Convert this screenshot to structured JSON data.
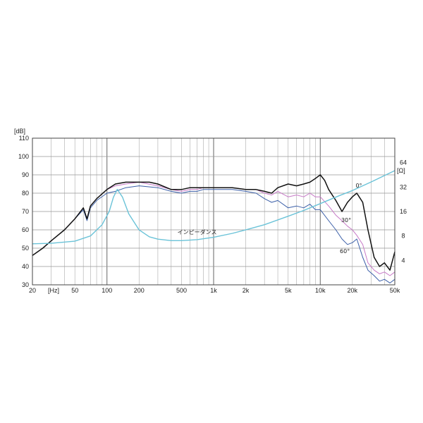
{
  "chart_data": {
    "type": "line",
    "title": "",
    "x_scale": "log",
    "xlim": [
      20,
      50000
    ],
    "ylim": [
      30,
      110
    ],
    "y2lim": [
      2,
      128
    ],
    "y2_scale": "log",
    "grid": true,
    "y_unit_label": "[dB]",
    "x_unit_label": "[Hz]",
    "y2_unit_label": "[Ω]",
    "x_ticks": [
      {
        "value": 20,
        "label": "20"
      },
      {
        "value": 50,
        "label": "50"
      },
      {
        "value": 100,
        "label": "100"
      },
      {
        "value": 200,
        "label": "200"
      },
      {
        "value": 500,
        "label": "500"
      },
      {
        "value": 1000,
        "label": "1k"
      },
      {
        "value": 2000,
        "label": "2k"
      },
      {
        "value": 5000,
        "label": "5k"
      },
      {
        "value": 10000,
        "label": "10k"
      },
      {
        "value": 20000,
        "label": "20k"
      },
      {
        "value": 50000,
        "label": "50k"
      }
    ],
    "y_ticks": [
      110,
      100,
      90,
      80,
      70,
      60,
      50,
      40,
      30
    ],
    "y2_ticks": [
      64,
      32,
      16,
      8,
      4
    ],
    "series": [
      {
        "name": "60°",
        "axis": "left",
        "color": "#3b5fa8",
        "x": [
          20,
          25,
          30,
          40,
          50,
          60,
          65,
          70,
          80,
          100,
          120,
          150,
          200,
          300,
          400,
          500,
          600,
          700,
          800,
          1000,
          1200,
          1500,
          2000,
          2500,
          3000,
          3500,
          4000,
          5000,
          6000,
          7000,
          8000,
          9000,
          10000,
          12000,
          14000,
          16000,
          18000,
          20000,
          22000,
          25000,
          28000,
          32000,
          36000,
          40000,
          45000,
          50000
        ],
        "y": [
          46,
          50,
          54,
          60,
          66,
          71,
          65,
          72,
          76,
          80,
          81,
          83,
          84,
          83,
          81,
          80,
          81,
          81,
          82,
          82,
          82,
          82,
          81,
          80,
          77,
          75,
          76,
          72,
          73,
          72,
          74,
          71,
          71,
          65,
          60,
          55,
          52,
          53,
          55,
          45,
          38,
          35,
          32,
          33,
          31,
          33
        ]
      },
      {
        "name": "30°",
        "axis": "left",
        "color": "#c77ac7",
        "x": [
          20,
          25,
          30,
          40,
          50,
          60,
          65,
          70,
          80,
          100,
          120,
          150,
          200,
          300,
          400,
          500,
          600,
          700,
          800,
          1000,
          1200,
          1500,
          2000,
          2500,
          3000,
          3500,
          4000,
          5000,
          6000,
          7000,
          8000,
          9000,
          10000,
          12000,
          14000,
          16000,
          18000,
          20000,
          22000,
          25000,
          28000,
          32000,
          36000,
          40000,
          45000,
          50000
        ],
        "y": [
          46,
          50,
          54,
          60,
          66,
          72,
          66,
          73,
          77,
          82,
          84,
          85,
          86,
          84,
          82,
          81,
          82,
          82,
          83,
          83,
          83,
          83,
          82,
          82,
          80,
          79,
          81,
          78,
          79,
          78,
          80,
          78,
          78,
          73,
          68,
          65,
          62,
          60,
          57,
          52,
          42,
          38,
          36,
          37,
          35,
          37
        ]
      },
      {
        "name": "0°",
        "axis": "left",
        "color": "#111111",
        "x": [
          20,
          25,
          30,
          40,
          50,
          60,
          65,
          70,
          80,
          100,
          120,
          150,
          200,
          250,
          300,
          400,
          500,
          600,
          700,
          800,
          1000,
          1200,
          1500,
          2000,
          2500,
          3000,
          3500,
          4000,
          5000,
          6000,
          7000,
          8000,
          9000,
          10000,
          11000,
          12000,
          14000,
          16000,
          18000,
          20000,
          22000,
          25000,
          28000,
          32000,
          36000,
          40000,
          45000,
          50000
        ],
        "y": [
          46,
          50,
          54,
          60,
          66,
          72,
          66,
          73,
          77,
          82,
          85,
          86,
          86,
          86,
          85,
          82,
          82,
          83,
          83,
          83,
          83,
          83,
          83,
          82,
          82,
          81,
          80,
          83,
          85,
          84,
          85,
          86,
          88,
          90,
          87,
          82,
          76,
          70,
          75,
          78,
          80,
          75,
          60,
          45,
          40,
          42,
          38,
          48
        ]
      },
      {
        "name": "インピーダンス",
        "axis": "right",
        "color": "#6bc3d8",
        "x": [
          20,
          30,
          50,
          70,
          90,
          105,
          115,
          125,
          140,
          160,
          200,
          250,
          300,
          400,
          500,
          700,
          1000,
          1500,
          2000,
          3000,
          5000,
          7000,
          10000,
          15000,
          20000,
          30000,
          50000
        ],
        "y": [
          6.4,
          6.5,
          6.9,
          8.0,
          11,
          16,
          24,
          30,
          24,
          15,
          9.5,
          7.8,
          7.3,
          7.0,
          7.0,
          7.2,
          7.7,
          8.6,
          9.5,
          11,
          14,
          16.5,
          20,
          25,
          29,
          37,
          51
        ]
      }
    ],
    "annotations": [
      {
        "text": "インピーダンス",
        "series": "インピーダンス"
      },
      {
        "text": "0°",
        "series": "0°"
      },
      {
        "text": "30°",
        "series": "30°"
      },
      {
        "text": "60°",
        "series": "60°"
      }
    ]
  }
}
